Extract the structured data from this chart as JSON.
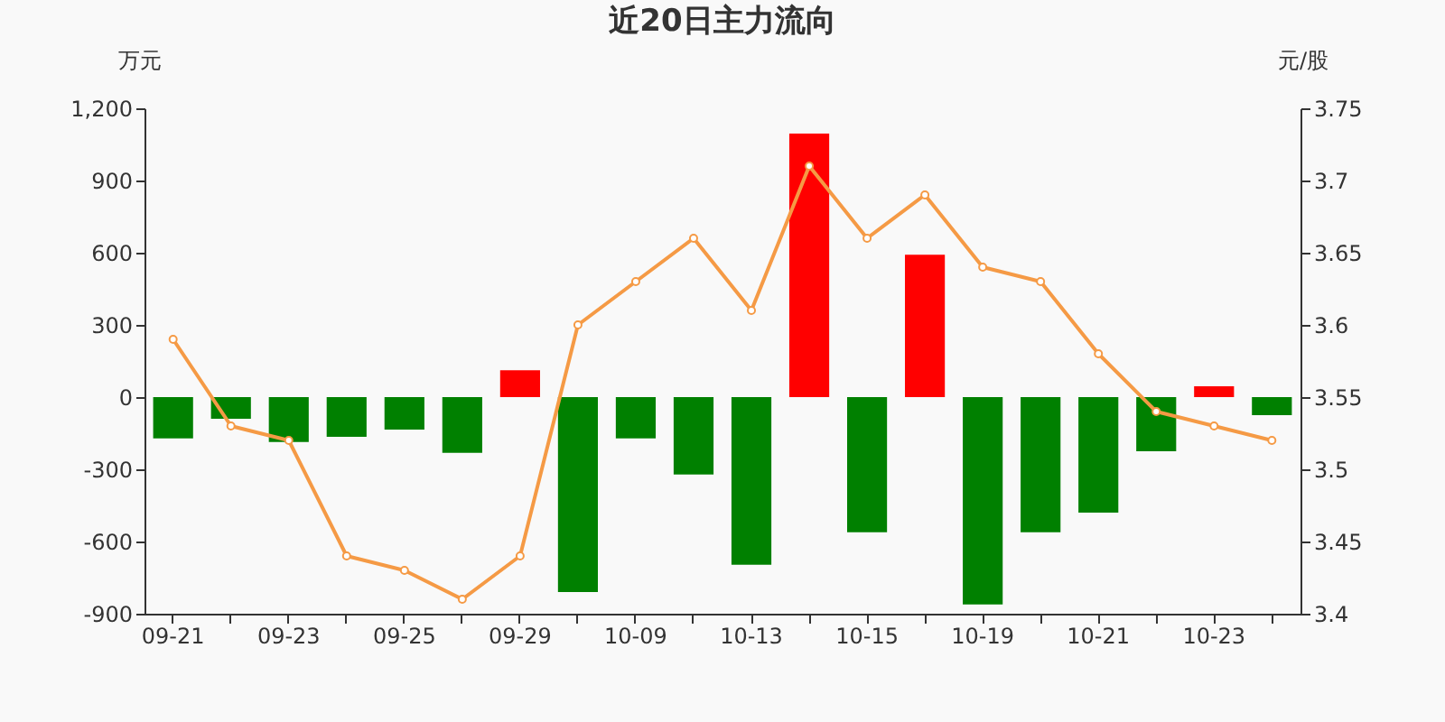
{
  "chart_data": {
    "type": "bar",
    "title": "近20日主力流向",
    "ylabel": "万元",
    "y2label": "元/股",
    "categories": [
      "09-21",
      null,
      "09-23",
      null,
      "09-25",
      null,
      "09-29",
      null,
      "10-09",
      null,
      "10-13",
      null,
      "10-15",
      null,
      "10-19",
      null,
      "10-21",
      null,
      "10-23",
      null
    ],
    "series": [
      {
        "values": [
          -172,
          -90,
          -187,
          -165,
          -135,
          -232,
          112,
          -810,
          -172,
          -322,
          -697,
          1095,
          -562,
          592,
          -862,
          -562,
          -480,
          -225,
          45,
          -75
        ],
        "colors": [
          "#008000",
          "#008000",
          "#008000",
          "#008000",
          "#008000",
          "#008000",
          "#ff0000",
          "#008000",
          "#008000",
          "#008000",
          "#008000",
          "#ff0000",
          "#008000",
          "#ff0000",
          "#008000",
          "#008000",
          "#008000",
          "#008000",
          "#ff0000",
          "#008000"
        ]
      },
      {
        "type": "line",
        "axis": "y2",
        "color": "#f59a45",
        "marker": "circle",
        "values": [
          3.59,
          3.53,
          3.52,
          3.44,
          3.43,
          3.41,
          3.44,
          3.6,
          3.63,
          3.66,
          3.61,
          3.71,
          3.66,
          3.69,
          3.64,
          3.63,
          3.58,
          3.54,
          3.53,
          3.52
        ]
      }
    ],
    "ylim": [
      -900,
      1200
    ],
    "yticks": [
      {
        "value": -900,
        "label": "-900"
      },
      {
        "value": -600,
        "label": "-600"
      },
      {
        "value": -300,
        "label": "-300"
      },
      0,
      300,
      600,
      900,
      {
        "value": 1200,
        "label": "1,200"
      }
    ],
    "y2lim": [
      3.4,
      3.75
    ],
    "y2ticks": [
      3.4,
      3.45,
      3.5,
      3.55,
      3.6,
      3.65,
      3.7,
      3.75
    ],
    "grid": false
  }
}
